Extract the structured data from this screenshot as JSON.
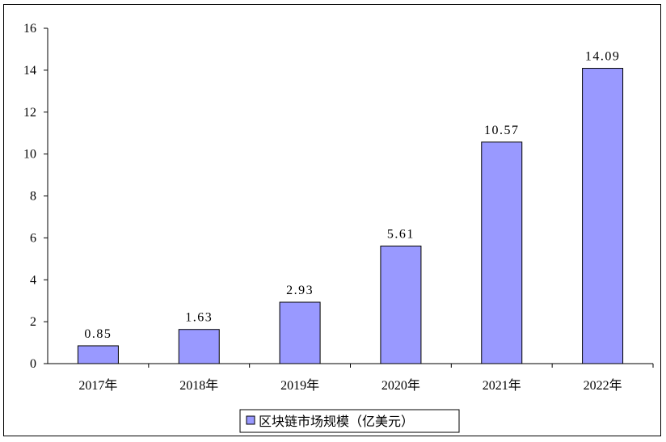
{
  "chart_data": {
    "type": "bar",
    "categories": [
      "2017年",
      "2018年",
      "2019年",
      "2020年",
      "2021年",
      "2022年"
    ],
    "series": [
      {
        "name": "区块链市场规模（亿美元）",
        "values": [
          0.85,
          1.63,
          2.93,
          5.61,
          10.57,
          14.09
        ]
      }
    ],
    "data_labels": [
      "0.85",
      "1.63",
      "2.93",
      "5.61",
      "10.57",
      "14.09"
    ],
    "ylim": [
      0,
      16
    ],
    "yticks": [
      "0",
      "2",
      "4",
      "6",
      "8",
      "10",
      "12",
      "14",
      "16"
    ],
    "grid": false,
    "legend_position": "bottom",
    "colors": {
      "bar": "#9999ff",
      "bar_stroke": "#000000"
    }
  }
}
